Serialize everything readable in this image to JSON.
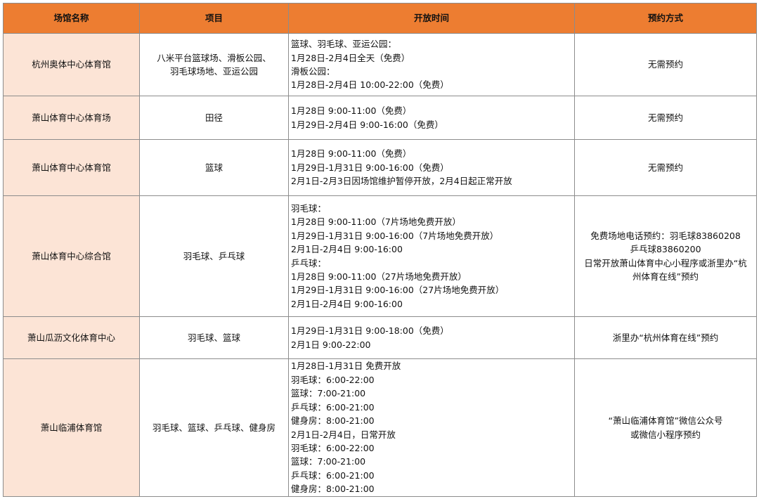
{
  "colors": {
    "header_bg": "#ED7D31",
    "name_col_bg": "#FCE4D6",
    "border": "#8c8c8c"
  },
  "headers": [
    "场馆名称",
    "项目",
    "开放时间",
    "预约方式"
  ],
  "rows": [
    {
      "name": "杭州奥体中心体育馆",
      "items": [
        "八米平台篮球场、滑板公园、",
        "羽毛球场地、亚运公园"
      ],
      "times": [
        "篮球、羽毛球、亚运公园：",
        "1月28日-2月4日全天（免费）",
        "滑板公园：",
        "1月28日-2月4日 10:00-22:00（免费）"
      ],
      "booking": [
        "无需预约"
      ]
    },
    {
      "name": "萧山体育中心体育场",
      "items": [
        "田径"
      ],
      "times": [
        "1月28日 9:00-11:00（免费）",
        "1月29日-2月4日 9:00-16:00（免费）"
      ],
      "booking": [
        "无需预约"
      ]
    },
    {
      "name": "萧山体育中心体育馆",
      "items": [
        "篮球"
      ],
      "times": [
        "1月28日 9:00-11:00（免费）",
        "1月29日-1月31日 9:00-16:00（免费）",
        "2月1日-2月3日因场馆维护暂停开放，2月4日起正常开放"
      ],
      "booking": [
        "无需预约"
      ]
    },
    {
      "name": "萧山体育中心综合馆",
      "items": [
        "羽毛球、乒乓球"
      ],
      "times": [
        "羽毛球：",
        "1月28日 9:00-11:00（7片场地免费开放）",
        "1月29日-1月31日 9:00-16:00（7片场地免费开放）",
        "2月1日-2月4日 9:00-16:00",
        "乒乓球：",
        "1月28日 9:00-11:00（27片场地免费开放）",
        "1月29日-1月31日 9:00-16:00（27片场地免费开放）",
        "2月1日-2月4日 9:00-16:00"
      ],
      "booking": [
        "免费场地电话预约：羽毛球83860208",
        "乒乓球83860200",
        "日常开放萧山体育中心小程序或浙里办“杭",
        "州体育在线”预约"
      ]
    },
    {
      "name": "萧山瓜沥文化体育中心",
      "items": [
        "羽毛球、篮球"
      ],
      "times": [
        "1月29日-1月31日 9:00-18:00（免费）",
        "2月1日 9:00-22:00"
      ],
      "booking": [
        "浙里办“杭州体育在线”预约"
      ]
    },
    {
      "name": "萧山临浦体育馆",
      "items": [
        "羽毛球、篮球、乒乓球、健身房"
      ],
      "times": [
        "1月28日-1月31日 免费开放",
        "羽毛球：6:00-22:00",
        "篮球：7:00-21:00",
        "乒乓球：6:00-21:00",
        "健身房：8:00-21:00",
        "2月1日-2月4日，日常开放",
        "羽毛球：6:00-22:00",
        "篮球：7:00-21:00",
        "乒乓球：6:00-21:00",
        "健身房：8:00-21:00"
      ],
      "booking": [
        "“萧山临浦体育馆”微信公众号",
        "或微信小程序预约"
      ]
    }
  ]
}
